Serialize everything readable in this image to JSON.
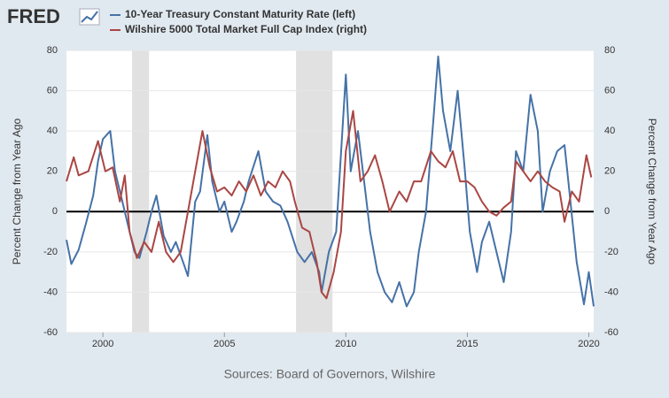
{
  "chart_data": {
    "type": "line",
    "logo": "FRED",
    "source": "Sources: Board of Governors, Wilshire",
    "ylabel": "Percent Change from Year Ago",
    "y2label": "Percent Change from Year Ago",
    "xlim": [
      1998.5,
      2020.2
    ],
    "xticks": [
      2000,
      2005,
      2010,
      2015,
      2020
    ],
    "ylim": [
      -60,
      80
    ],
    "yticks": [
      -60,
      -40,
      -20,
      0,
      20,
      40,
      60,
      80
    ],
    "y2lim": [
      -60,
      80
    ],
    "y2ticks": [
      -60,
      -40,
      -20,
      0,
      20,
      40,
      60,
      80
    ],
    "grid": true,
    "recessions": [
      [
        2001.2,
        2001.9
      ],
      [
        2007.95,
        2009.45
      ]
    ],
    "series": [
      {
        "name": "10-Year Treasury Constant Maturity Rate (left)",
        "color": "#4572a7",
        "x": [
          1998.5,
          1998.7,
          1999.0,
          1999.3,
          1999.6,
          1999.8,
          2000.0,
          2000.3,
          2000.5,
          2000.8,
          2001.0,
          2001.3,
          2001.5,
          2001.8,
          2002.0,
          2002.2,
          2002.5,
          2002.8,
          2003.0,
          2003.3,
          2003.5,
          2003.8,
          2004.0,
          2004.3,
          2004.5,
          2004.8,
          2005.0,
          2005.3,
          2005.5,
          2005.8,
          2006.0,
          2006.4,
          2006.7,
          2007.0,
          2007.3,
          2007.6,
          2008.0,
          2008.3,
          2008.6,
          2008.9,
          2009.0,
          2009.3,
          2009.6,
          2010.0,
          2010.2,
          2010.5,
          2010.8,
          2011.0,
          2011.3,
          2011.6,
          2011.9,
          2012.2,
          2012.5,
          2012.8,
          2013.0,
          2013.3,
          2013.6,
          2013.8,
          2014.0,
          2014.3,
          2014.6,
          2014.9,
          2015.1,
          2015.4,
          2015.6,
          2015.9,
          2016.2,
          2016.5,
          2016.8,
          2017.0,
          2017.3,
          2017.6,
          2017.9,
          2018.1,
          2018.4,
          2018.7,
          2019.0,
          2019.2,
          2019.5,
          2019.8,
          2020.0,
          2020.2
        ],
        "values": [
          -14,
          -26,
          -19,
          -6,
          8,
          25,
          36,
          40,
          20,
          5,
          -5,
          -20,
          -23,
          -10,
          0,
          8,
          -12,
          -20,
          -15,
          -25,
          -32,
          5,
          10,
          38,
          15,
          0,
          5,
          -10,
          -5,
          5,
          15,
          30,
          10,
          5,
          3,
          -5,
          -20,
          -25,
          -20,
          -30,
          -40,
          -20,
          -10,
          68,
          20,
          40,
          10,
          -10,
          -30,
          -40,
          -45,
          -35,
          -47,
          -40,
          -20,
          0,
          45,
          77,
          50,
          30,
          60,
          20,
          -10,
          -30,
          -15,
          -5,
          -20,
          -35,
          -10,
          30,
          20,
          58,
          40,
          0,
          20,
          30,
          33,
          10,
          -25,
          -46,
          -30,
          -47
        ],
        "axis": "y"
      },
      {
        "name": "Wilshire 5000 Total Market Full Cap Index (right)",
        "color": "#aa4643",
        "x": [
          1998.5,
          1998.8,
          1999.0,
          1999.4,
          1999.8,
          2000.1,
          2000.4,
          2000.7,
          2000.9,
          2001.1,
          2001.4,
          2001.7,
          2002.0,
          2002.3,
          2002.6,
          2002.9,
          2003.2,
          2003.5,
          2003.8,
          2004.1,
          2004.4,
          2004.7,
          2005.0,
          2005.3,
          2005.6,
          2005.9,
          2006.2,
          2006.5,
          2006.8,
          2007.1,
          2007.4,
          2007.7,
          2007.9,
          2008.2,
          2008.5,
          2008.8,
          2009.0,
          2009.2,
          2009.5,
          2009.8,
          2010.0,
          2010.3,
          2010.6,
          2010.9,
          2011.2,
          2011.5,
          2011.8,
          2012.2,
          2012.5,
          2012.8,
          2013.1,
          2013.5,
          2013.8,
          2014.1,
          2014.4,
          2014.7,
          2015.0,
          2015.3,
          2015.6,
          2015.9,
          2016.2,
          2016.5,
          2016.8,
          2017.0,
          2017.3,
          2017.6,
          2017.9,
          2018.2,
          2018.5,
          2018.8,
          2019.0,
          2019.3,
          2019.6,
          2019.9,
          2020.1
        ],
        "values": [
          15,
          27,
          18,
          20,
          35,
          20,
          22,
          5,
          18,
          -10,
          -23,
          -15,
          -20,
          -5,
          -20,
          -25,
          -20,
          0,
          20,
          40,
          22,
          10,
          12,
          8,
          15,
          10,
          18,
          8,
          15,
          12,
          20,
          15,
          5,
          -8,
          -10,
          -25,
          -40,
          -43,
          -30,
          -10,
          30,
          50,
          15,
          20,
          28,
          15,
          0,
          10,
          5,
          15,
          15,
          30,
          25,
          22,
          30,
          15,
          15,
          12,
          5,
          0,
          -2,
          2,
          5,
          25,
          20,
          15,
          20,
          15,
          12,
          10,
          -5,
          10,
          5,
          28,
          17
        ],
        "axis": "y2"
      }
    ]
  }
}
